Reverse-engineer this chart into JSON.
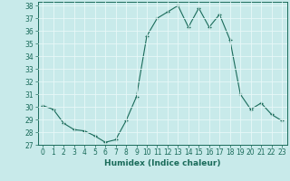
{
  "x": [
    0,
    1,
    2,
    3,
    4,
    5,
    6,
    7,
    8,
    9,
    10,
    11,
    12,
    13,
    14,
    15,
    16,
    17,
    18,
    19,
    20,
    21,
    22,
    23
  ],
  "y": [
    30.1,
    29.8,
    28.7,
    28.2,
    28.1,
    27.7,
    27.2,
    27.4,
    28.9,
    30.8,
    35.6,
    37.0,
    37.5,
    38.0,
    36.3,
    37.8,
    36.3,
    37.3,
    35.3,
    31.0,
    29.8,
    30.3,
    29.4,
    28.9
  ],
  "xlabel": "Humidex (Indice chaleur)",
  "ylim": [
    27,
    38
  ],
  "xlim": [
    -0.5,
    23.5
  ],
  "yticks": [
    27,
    28,
    29,
    30,
    31,
    32,
    33,
    34,
    35,
    36,
    37,
    38
  ],
  "xticks": [
    0,
    1,
    2,
    3,
    4,
    5,
    6,
    7,
    8,
    9,
    10,
    11,
    12,
    13,
    14,
    15,
    16,
    17,
    18,
    19,
    20,
    21,
    22,
    23
  ],
  "line_color": "#1a6b5a",
  "marker": "+",
  "bg_color": "#c8eaea",
  "grid_color": "#e8f8f8",
  "label_fontsize": 6.5,
  "tick_fontsize": 5.5
}
